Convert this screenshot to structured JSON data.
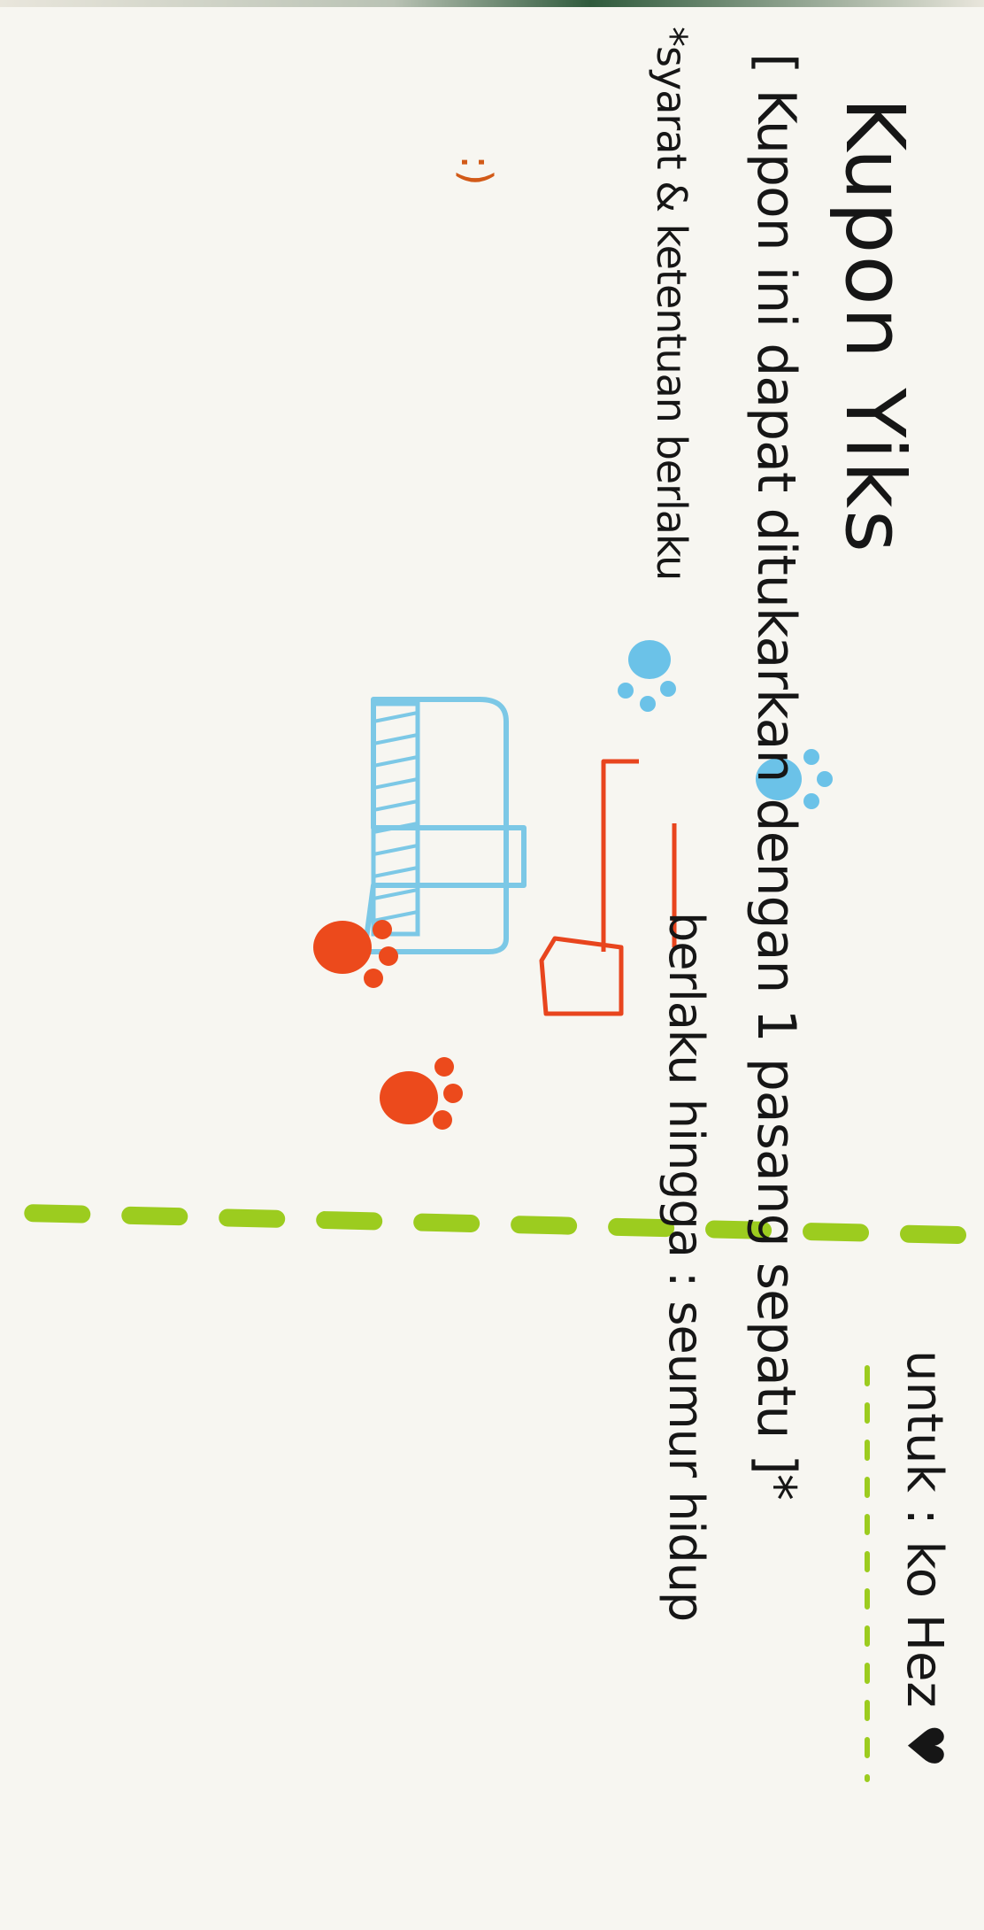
{
  "coupon": {
    "title": "Kupon Yiks",
    "recipient_label": "untuk : ko Hez",
    "heart_icon": "heart-icon",
    "description": "[ Kupon ini dapat ditukarkan dengan 1 pasang sepatu ]*",
    "validity": "berlaku hingga : seumur hidup",
    "terms": "*syarat & ketentuan berlaku",
    "smiley": ":)",
    "colors": {
      "paper": "#f7f6f1",
      "ink": "#161616",
      "dashed_line": "#9ccc1f",
      "boot_blue": "#7cc8e6",
      "boot_red": "#e8451e",
      "paw_blue": "#6bc2e8",
      "paw_red": "#ec4a1c"
    }
  }
}
